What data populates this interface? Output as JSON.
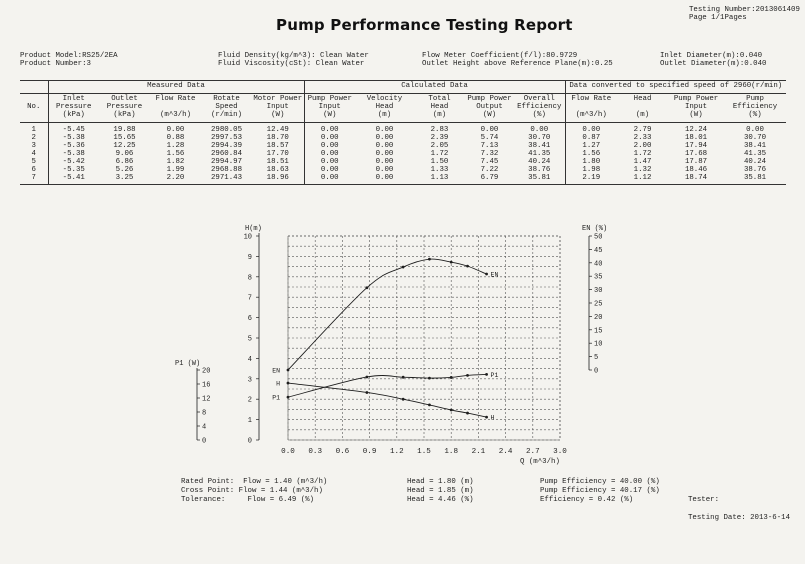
{
  "header": {
    "title": "Pump Performance Testing Report",
    "testing_number": "Testing Number:2013061409",
    "page": "Page 1/1Pages"
  },
  "info": {
    "product_model": "Product Model:RS25/2EA",
    "product_number": "Product Number:3",
    "fluid_density": "Fluid Density(kg/m^3): Clean Water",
    "fluid_viscosity": "Fluid Viscosity(cSt): Clean Water",
    "flow_meter": "Flow Meter Coefficient(f/l):80.9729",
    "outlet_height": "Outlet Height above Reference Plane(m):0.25",
    "inlet_diameter": "Inlet Diameter(m):0.040",
    "outlet_diameter": "Outlet Diameter(m):0.040"
  },
  "table": {
    "groups": {
      "measured": "Measured Data",
      "calculated": "Calculated Data",
      "converted": "Data converted to specified speed of 2960(r/min)"
    },
    "columns": [
      "No.",
      "Inlet\nPressure\n(kPa)",
      "Outlet\nPressure\n(kPa)",
      "Flow Rate\n\n(m^3/h)",
      "Rotate\nSpeed\n(r/min)",
      "Motor Power\nInput\n(W)",
      "Pump Power\nInput\n(W)",
      "Velocity\nHead\n(m)",
      "Total\nHead\n(m)",
      "Pump Power\nOutput\n(W)",
      "Overall\nEfficiency\n(%)",
      "Flow Rate\n\n(m^3/h)",
      "Head\n\n(m)",
      "Pump Power\nInput\n(W)",
      "Pump\nEfficiency\n(%)"
    ],
    "rows": [
      [
        "1",
        "-5.45",
        "19.88",
        "0.00",
        "2980.05",
        "12.49",
        "0.00",
        "0.00",
        "2.83",
        "0.00",
        "0.00",
        "0.00",
        "2.79",
        "12.24",
        "0.00"
      ],
      [
        "2",
        "-5.38",
        "15.65",
        "0.88",
        "2997.53",
        "18.70",
        "0.00",
        "0.00",
        "2.39",
        "5.74",
        "30.70",
        "0.87",
        "2.33",
        "18.01",
        "30.70"
      ],
      [
        "3",
        "-5.36",
        "12.25",
        "1.28",
        "2994.39",
        "18.57",
        "0.00",
        "0.00",
        "2.05",
        "7.13",
        "38.41",
        "1.27",
        "2.00",
        "17.94",
        "38.41"
      ],
      [
        "4",
        "-5.38",
        "9.06",
        "1.56",
        "2960.84",
        "17.70",
        "0.00",
        "0.00",
        "1.72",
        "7.32",
        "41.35",
        "1.56",
        "1.72",
        "17.68",
        "41.35"
      ],
      [
        "5",
        "-5.42",
        "6.86",
        "1.82",
        "2994.97",
        "18.51",
        "0.00",
        "0.00",
        "1.50",
        "7.45",
        "40.24",
        "1.80",
        "1.47",
        "17.87",
        "40.24"
      ],
      [
        "6",
        "-5.35",
        "5.26",
        "1.99",
        "2968.88",
        "18.63",
        "0.00",
        "0.00",
        "1.33",
        "7.22",
        "38.76",
        "1.98",
        "1.32",
        "18.46",
        "38.76"
      ],
      [
        "7",
        "-5.41",
        "3.25",
        "2.20",
        "2971.43",
        "18.96",
        "0.00",
        "0.00",
        "1.13",
        "6.79",
        "35.81",
        "2.19",
        "1.12",
        "18.74",
        "35.81"
      ]
    ]
  },
  "chart_data": {
    "type": "line",
    "x": [
      0.0,
      0.87,
      1.27,
      1.56,
      1.8,
      1.98,
      2.19
    ],
    "xlabel": "Q (m^3/h)",
    "xlim": [
      0,
      3.0
    ],
    "xticks": [
      "0.0",
      "0.3",
      "0.6",
      "0.9",
      "1.2",
      "1.5",
      "1.8",
      "2.1",
      "2.4",
      "2.7",
      "3.0"
    ],
    "axes": {
      "head": {
        "label": "H(m)",
        "lim": [
          0,
          10
        ],
        "ticks": [
          "0",
          "1",
          "2",
          "3",
          "4",
          "5",
          "6",
          "7",
          "8",
          "9",
          "10"
        ]
      },
      "efficiency": {
        "label": "EN (%)",
        "lim": [
          0,
          50
        ],
        "ticks": [
          "0",
          "5",
          "10",
          "15",
          "20",
          "25",
          "30",
          "35",
          "40",
          "45",
          "50"
        ]
      },
      "power": {
        "label": "P1 (W)",
        "lim": [
          0,
          20
        ],
        "ticks": [
          "0",
          "4",
          "8",
          "12",
          "16",
          "20"
        ]
      }
    },
    "series": [
      {
        "name": "H",
        "axis": "head",
        "values": [
          2.79,
          2.33,
          2.0,
          1.72,
          1.47,
          1.32,
          1.12
        ]
      },
      {
        "name": "EN",
        "axis": "efficiency",
        "values": [
          0.0,
          30.7,
          38.41,
          41.35,
          40.24,
          38.76,
          35.81
        ]
      },
      {
        "name": "P1",
        "axis": "power",
        "values": [
          12.24,
          18.01,
          17.94,
          17.68,
          17.87,
          18.46,
          18.74
        ]
      }
    ],
    "grid": true
  },
  "summary": {
    "rated": "Rated Point:  Flow = 1.40 (m^3/h)",
    "cross": "Cross Point: Flow = 1.44 (m^3/h)",
    "tolerance": "Tolerance:     Flow = 6.49 (%)",
    "head_rated": "Head = 1.80 (m)",
    "head_cross": "Head = 1.85 (m)",
    "head_tol": "Head = 4.46 (%)",
    "eff_rated": "Pump Efficiency = 40.00 (%)",
    "eff_cross": "Pump Efficiency = 40.17 (%)",
    "eff_tol": "Efficiency = 0.42 (%)",
    "tester": "Tester:",
    "testing_date": "Testing Date: 2013-6-14"
  },
  "colors": {
    "ink": "#1e1e1e",
    "grid": "#555555",
    "paper": "#f4f3ef"
  }
}
